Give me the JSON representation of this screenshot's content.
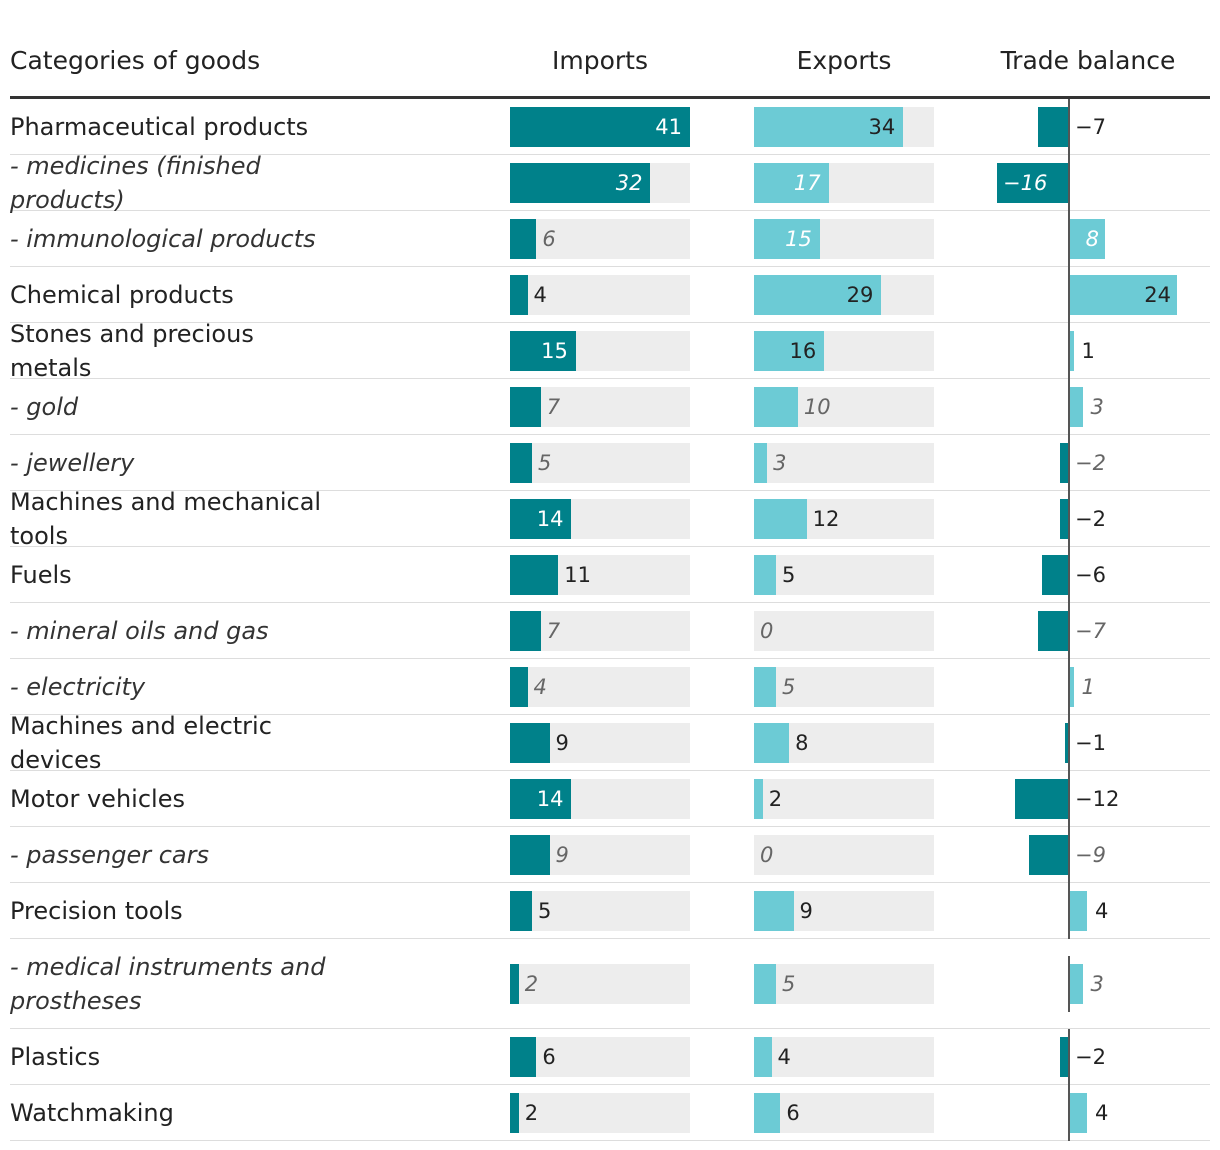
{
  "table": {
    "columns": [
      "Categories of goods",
      "Imports",
      "Exports",
      "Trade balance"
    ],
    "colors": {
      "imports": "#00818a",
      "exports": "#6ccbd5",
      "track": "#ededed"
    },
    "rows": [
      {
        "label": "Pharmaceutical products",
        "italic": false,
        "imports": 41,
        "exports": 34,
        "balance": -7,
        "balance_label": "−7"
      },
      {
        "label": "- medicines (finished products)",
        "italic": true,
        "imports": 32,
        "exports": 17,
        "balance": -16,
        "balance_label": "−16"
      },
      {
        "label": "- immunological products",
        "italic": true,
        "imports": 6,
        "exports": 15,
        "balance": 8
      },
      {
        "label": "Chemical products",
        "italic": false,
        "imports": 4,
        "exports": 29,
        "balance": 24
      },
      {
        "label": "Stones and precious metals",
        "italic": false,
        "imports": 15,
        "exports": 16,
        "balance": 1
      },
      {
        "label": "- gold",
        "italic": true,
        "imports": 7,
        "exports": 10,
        "balance": 3
      },
      {
        "label": "- jewellery",
        "italic": true,
        "imports": 5,
        "exports": 3,
        "balance": -2,
        "balance_label": "−2"
      },
      {
        "label": "Machines and mechanical tools",
        "italic": false,
        "imports": 14,
        "exports": 12,
        "balance": -2,
        "balance_label": "−2"
      },
      {
        "label": "Fuels",
        "italic": false,
        "imports": 11,
        "exports": 5,
        "balance": -6,
        "balance_label": "−6"
      },
      {
        "label": "- mineral oils and gas",
        "italic": true,
        "imports": 7,
        "exports": 0,
        "balance": -7,
        "balance_label": "−7"
      },
      {
        "label": "- electricity",
        "italic": true,
        "imports": 4,
        "exports": 5,
        "balance": 1
      },
      {
        "label": "Machines and electric devices",
        "italic": false,
        "imports": 9,
        "exports": 8,
        "balance": -1,
        "balance_label": "−1"
      },
      {
        "label": "Motor vehicles",
        "italic": false,
        "imports": 14,
        "exports": 2,
        "balance": -12,
        "balance_label": "−12"
      },
      {
        "label": "- passenger cars",
        "italic": true,
        "imports": 9,
        "exports": 0,
        "balance": -9,
        "balance_label": "−9"
      },
      {
        "label": "Precision tools",
        "italic": false,
        "imports": 5,
        "exports": 9,
        "balance": 4
      },
      {
        "label": "- medical instruments and prostheses",
        "italic": true,
        "imports": 2,
        "exports": 5,
        "balance": 3
      },
      {
        "label": "Plastics",
        "italic": false,
        "imports": 6,
        "exports": 4,
        "balance": -2,
        "balance_label": "−2"
      },
      {
        "label": "Watchmaking",
        "italic": false,
        "imports": 2,
        "exports": 6,
        "balance": 4
      }
    ]
  }
}
